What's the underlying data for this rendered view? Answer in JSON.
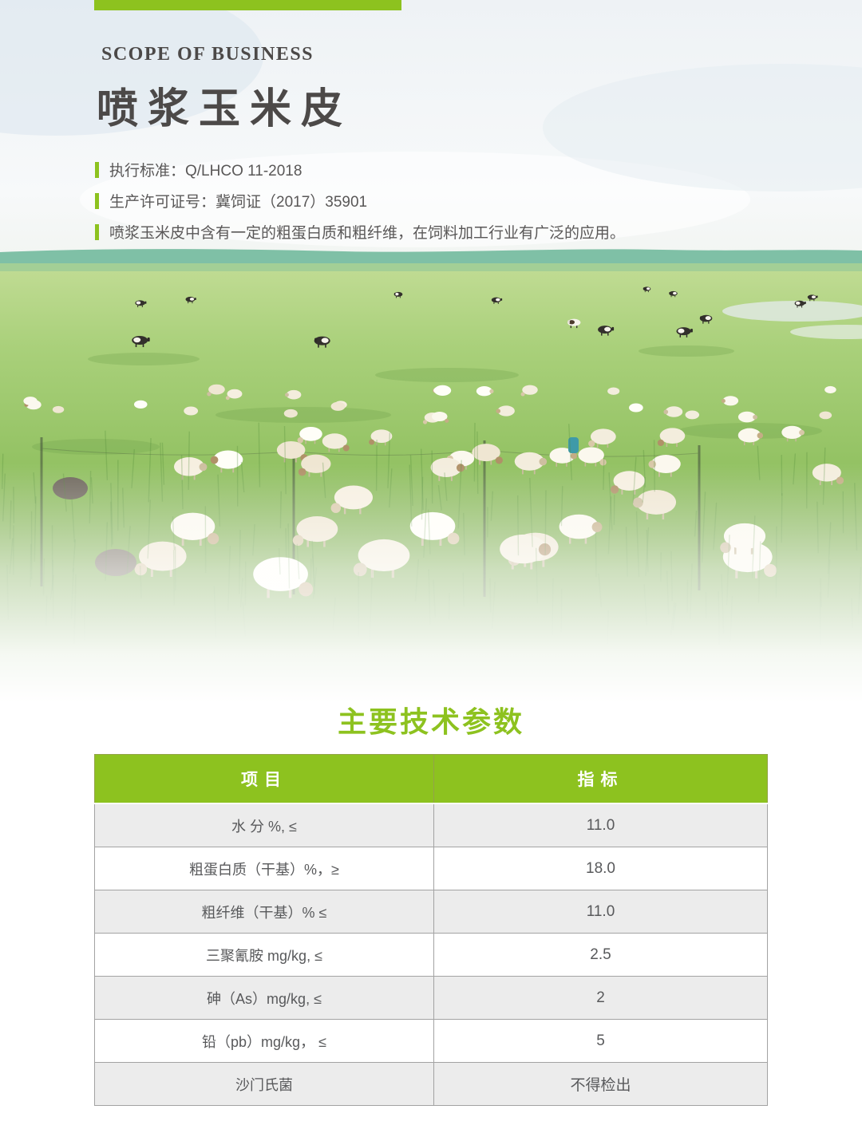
{
  "page": {
    "section_label": "SCOPE OF BUSINESS",
    "product_title": "喷浆玉米皮",
    "bullets": [
      {
        "label": "执行标准：Q/LHCO 11-2018"
      },
      {
        "label": "生产许可证号：冀饲证（2017）35901"
      },
      {
        "label": "喷浆玉米皮中含有一定的粗蛋白质和粗纤维，在饲料加工行业有广泛的应用。"
      }
    ],
    "photo_description": "草原上放牧的羊群与远处的奶牛",
    "params_heading": "主要技术参数"
  },
  "colors": {
    "accent_green": "#8dc21f",
    "title_gray": "#4c4948",
    "text_gray": "#595757",
    "row_gray": "#ececec"
  },
  "table": {
    "headers": [
      "项目",
      "指标"
    ],
    "rows": [
      {
        "item": "水 分 %, ≤",
        "value": "11.0"
      },
      {
        "item": "粗蛋白质（干基）%，≥",
        "value": "18.0"
      },
      {
        "item": "粗纤维（干基）% ≤",
        "value": "11.0"
      },
      {
        "item": "三聚氰胺 mg/kg, ≤",
        "value": "2.5"
      },
      {
        "item": "砷（As）mg/kg, ≤",
        "value": "2"
      },
      {
        "item": "铅（pb）mg/kg， ≤",
        "value": "5"
      },
      {
        "item": "沙门氏菌",
        "value": "不得检出"
      }
    ]
  }
}
